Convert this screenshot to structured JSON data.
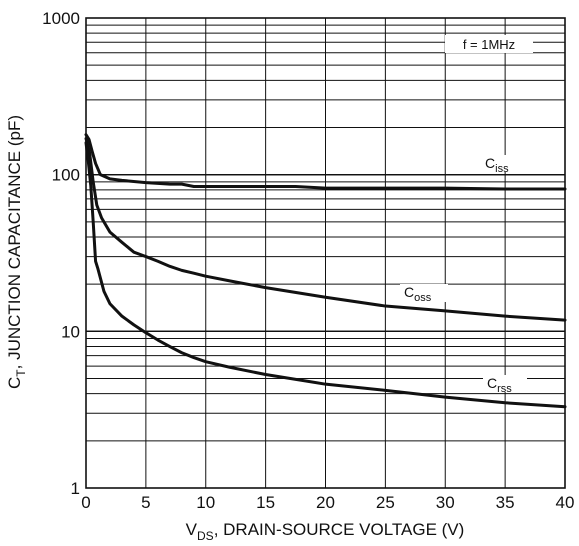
{
  "chart_data": {
    "type": "line",
    "xlabel": {
      "prefix": "V",
      "subscript": "DS",
      "suffix": ", DRAIN-SOURCE VOLTAGE (V)"
    },
    "ylabel": {
      "prefix": "C",
      "subscript": "T",
      "suffix": ", JUNCTION CAPACITANCE (pF)"
    },
    "xlim": [
      0,
      40
    ],
    "ylim": [
      1,
      1000
    ],
    "yscale": "log",
    "grid": true,
    "x_ticks": [
      "0",
      "5",
      "10",
      "15",
      "20",
      "25",
      "30",
      "35",
      "40"
    ],
    "y_ticks": [
      "1",
      "10",
      "100",
      "1000"
    ],
    "annotations": [
      {
        "text": "f = 1MHz"
      }
    ],
    "series": [
      {
        "name": "Ciss",
        "label_main": "C",
        "label_sub": "iss",
        "color": "#111111",
        "points": [
          [
            0,
            180
          ],
          [
            0.25,
            168
          ],
          [
            0.5,
            142
          ],
          [
            0.8,
            118
          ],
          [
            1.2,
            100
          ],
          [
            2,
            94
          ],
          [
            3,
            92
          ],
          [
            5,
            89
          ],
          [
            7,
            87
          ],
          [
            8,
            87
          ],
          [
            9,
            84
          ],
          [
            10,
            84
          ],
          [
            12,
            84
          ],
          [
            15,
            84
          ],
          [
            17.5,
            84
          ],
          [
            20,
            82
          ],
          [
            25,
            82
          ],
          [
            30,
            82
          ],
          [
            35,
            81
          ],
          [
            40,
            81
          ]
        ]
      },
      {
        "name": "Coss",
        "label_main": "C",
        "label_sub": "oss",
        "color": "#111111",
        "points": [
          [
            0,
            170
          ],
          [
            0.3,
            138
          ],
          [
            0.6,
            90
          ],
          [
            0.9,
            64
          ],
          [
            1.3,
            53
          ],
          [
            2,
            43
          ],
          [
            3,
            37
          ],
          [
            4,
            32
          ],
          [
            5,
            30
          ],
          [
            6,
            28
          ],
          [
            7,
            26
          ],
          [
            8,
            24.5
          ],
          [
            9,
            23.5
          ],
          [
            10,
            22.5
          ],
          [
            12,
            21
          ],
          [
            15,
            19
          ],
          [
            20,
            16.5
          ],
          [
            25,
            14.5
          ],
          [
            30,
            13.5
          ],
          [
            35,
            12.5
          ],
          [
            40,
            11.8
          ]
        ]
      },
      {
        "name": "Crss",
        "label_main": "C",
        "label_sub": "rss",
        "color": "#111111",
        "points": [
          [
            0,
            160
          ],
          [
            0.2,
            120
          ],
          [
            0.4,
            85
          ],
          [
            0.6,
            50
          ],
          [
            0.8,
            28
          ],
          [
            1.0,
            25
          ],
          [
            1.5,
            18
          ],
          [
            2,
            15
          ],
          [
            3,
            12.5
          ],
          [
            4,
            11
          ],
          [
            5,
            9.8
          ],
          [
            6,
            8.8
          ],
          [
            7,
            8.0
          ],
          [
            8,
            7.3
          ],
          [
            9,
            6.8
          ],
          [
            10,
            6.4
          ],
          [
            12,
            5.9
          ],
          [
            15,
            5.3
          ],
          [
            20,
            4.6
          ],
          [
            25,
            4.2
          ],
          [
            30,
            3.8
          ],
          [
            35,
            3.5
          ],
          [
            40,
            3.3
          ]
        ]
      }
    ]
  }
}
